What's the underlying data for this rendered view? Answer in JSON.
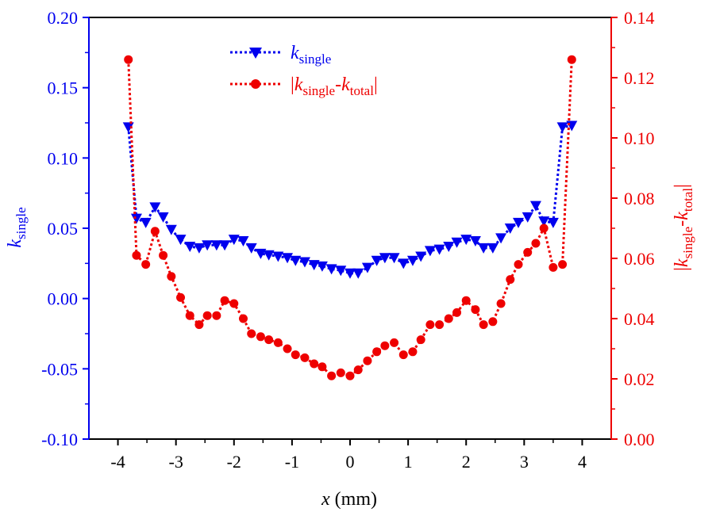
{
  "chart_data": {
    "type": "line",
    "title": "",
    "xlabel": {
      "var": "x",
      "unit": " (mm)"
    },
    "ylabel_left": {
      "main": "k",
      "sub": "single"
    },
    "ylabel_right": {
      "open": "|",
      "k1": "k",
      "sub1": "single",
      "minus": "-",
      "k2": "k",
      "sub2": "total",
      "close": "|"
    },
    "xlim": [
      -4.5,
      4.5
    ],
    "ylim_left": [
      -0.1,
      0.2
    ],
    "ylim_right": [
      0.0,
      0.14
    ],
    "x_ticks": [
      -4,
      -3,
      -2,
      -1,
      0,
      1,
      2,
      3,
      4
    ],
    "x_tick_labels": [
      "-4",
      "-3",
      "-2",
      "-1",
      "0",
      "1",
      "2",
      "3",
      "4"
    ],
    "y_left_ticks": [
      -0.1,
      -0.05,
      0.0,
      0.05,
      0.1,
      0.15,
      0.2
    ],
    "y_left_tick_labels": [
      "-0.10",
      "-0.05",
      "0.00",
      "0.05",
      "0.10",
      "0.15",
      "0.20"
    ],
    "y_right_ticks": [
      0.0,
      0.02,
      0.04,
      0.06,
      0.08,
      0.1,
      0.12,
      0.14
    ],
    "y_right_tick_labels": [
      "0.00",
      "0.02",
      "0.04",
      "0.06",
      "0.08",
      "0.10",
      "0.12",
      "0.14"
    ],
    "legend_position": "top-center",
    "colors": {
      "left": "#0000ee",
      "right": "#ee0000",
      "axis": "#000000"
    },
    "series": [
      {
        "name": "k_single",
        "legend": {
          "main": "k",
          "sub": "single"
        },
        "axis": "left",
        "marker": "triangle-down",
        "color": "#0000ee",
        "x": [
          -3.82,
          -3.68,
          -3.52,
          -3.36,
          -3.22,
          -3.08,
          -2.92,
          -2.76,
          -2.6,
          -2.46,
          -2.3,
          -2.16,
          -2.0,
          -1.84,
          -1.7,
          -1.54,
          -1.4,
          -1.24,
          -1.08,
          -0.94,
          -0.78,
          -0.62,
          -0.48,
          -0.32,
          -0.16,
          0.0,
          0.14,
          0.3,
          0.46,
          0.6,
          0.76,
          0.92,
          1.08,
          1.22,
          1.38,
          1.54,
          1.7,
          1.84,
          2.0,
          2.16,
          2.3,
          2.46,
          2.6,
          2.76,
          2.9,
          3.06,
          3.2,
          3.34,
          3.5,
          3.66,
          3.82
        ],
        "values": [
          0.122,
          0.057,
          0.054,
          0.065,
          0.058,
          0.049,
          0.042,
          0.037,
          0.036,
          0.038,
          0.038,
          0.038,
          0.042,
          0.041,
          0.036,
          0.032,
          0.031,
          0.03,
          0.029,
          0.027,
          0.026,
          0.024,
          0.023,
          0.021,
          0.02,
          0.018,
          0.018,
          0.022,
          0.027,
          0.029,
          0.029,
          0.025,
          0.027,
          0.03,
          0.034,
          0.035,
          0.037,
          0.04,
          0.042,
          0.041,
          0.036,
          0.036,
          0.043,
          0.05,
          0.054,
          0.058,
          0.066,
          0.055,
          0.054,
          0.122,
          0.123
        ]
      },
      {
        "name": "|k_single-k_total|",
        "legend": {
          "open": "|",
          "k1": "k",
          "sub1": "single",
          "minus": "-",
          "k2": "k",
          "sub2": "total",
          "close": "|"
        },
        "axis": "right",
        "marker": "circle",
        "color": "#ee0000",
        "x": [
          -3.82,
          -3.68,
          -3.52,
          -3.36,
          -3.22,
          -3.08,
          -2.92,
          -2.76,
          -2.6,
          -2.46,
          -2.3,
          -2.16,
          -2.0,
          -1.84,
          -1.7,
          -1.54,
          -1.4,
          -1.24,
          -1.08,
          -0.94,
          -0.78,
          -0.62,
          -0.48,
          -0.32,
          -0.16,
          0.0,
          0.14,
          0.3,
          0.46,
          0.6,
          0.76,
          0.92,
          1.08,
          1.22,
          1.38,
          1.54,
          1.7,
          1.84,
          2.0,
          2.16,
          2.3,
          2.46,
          2.6,
          2.76,
          2.9,
          3.06,
          3.2,
          3.34,
          3.5,
          3.66,
          3.82
        ],
        "values": [
          0.126,
          0.061,
          0.058,
          0.069,
          0.061,
          0.054,
          0.047,
          0.041,
          0.038,
          0.041,
          0.041,
          0.046,
          0.045,
          0.04,
          0.035,
          0.034,
          0.033,
          0.032,
          0.03,
          0.028,
          0.027,
          0.025,
          0.024,
          0.021,
          0.022,
          0.021,
          0.023,
          0.026,
          0.029,
          0.031,
          0.032,
          0.028,
          0.029,
          0.033,
          0.038,
          0.038,
          0.04,
          0.042,
          0.046,
          0.043,
          0.038,
          0.039,
          0.045,
          0.053,
          0.058,
          0.062,
          0.065,
          0.07,
          0.057,
          0.058,
          0.126
        ]
      }
    ]
  }
}
